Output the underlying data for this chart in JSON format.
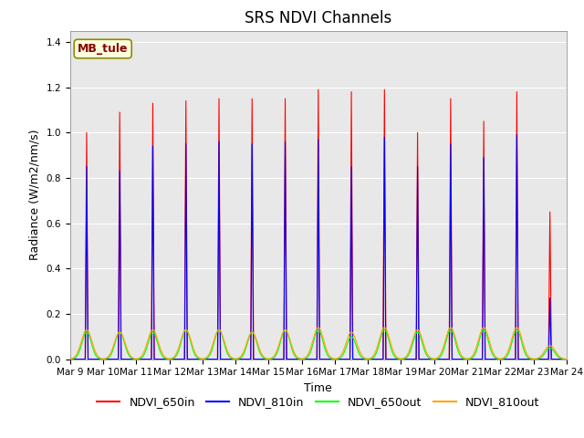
{
  "title": "SRS NDVI Channels",
  "xlabel": "Time",
  "ylabel": "Radiance (W/m2/nm/s)",
  "ylim": [
    0,
    1.45
  ],
  "annotation": "MB_tule",
  "legend": [
    "NDVI_650in",
    "NDVI_810in",
    "NDVI_650out",
    "NDVI_810out"
  ],
  "colors": [
    "red",
    "blue",
    "lime",
    "orange"
  ],
  "tick_labels": [
    "Mar 9",
    "Mar 10",
    "Mar 11",
    "Mar 12",
    "Mar 13",
    "Mar 14",
    "Mar 15",
    "Mar 16",
    "Mar 17",
    "Mar 18",
    "Mar 19",
    "Mar 20",
    "Mar 21",
    "Mar 22",
    "Mar 23",
    "Mar 24"
  ],
  "peak_650in": [
    1.0,
    1.09,
    1.13,
    1.14,
    1.15,
    1.15,
    1.15,
    1.19,
    1.18,
    1.19,
    1.0,
    1.15,
    1.05,
    1.18,
    0.65,
    0.0
  ],
  "peak_810in": [
    0.85,
    0.83,
    0.94,
    0.95,
    0.96,
    0.95,
    0.96,
    0.97,
    0.85,
    0.98,
    0.85,
    0.95,
    0.89,
    0.99,
    0.27,
    0.0
  ],
  "peak_650out": [
    0.12,
    0.12,
    0.12,
    0.13,
    0.13,
    0.12,
    0.13,
    0.13,
    0.1,
    0.13,
    0.12,
    0.13,
    0.13,
    0.13,
    0.05,
    0.0
  ],
  "peak_810out": [
    0.13,
    0.12,
    0.13,
    0.13,
    0.13,
    0.12,
    0.13,
    0.14,
    0.12,
    0.14,
    0.13,
    0.14,
    0.14,
    0.14,
    0.06,
    0.0
  ],
  "facecolor": "#e8e8e8",
  "title_fontsize": 12,
  "legend_fontsize": 9,
  "axis_label_fontsize": 9,
  "tick_fontsize": 7.5
}
